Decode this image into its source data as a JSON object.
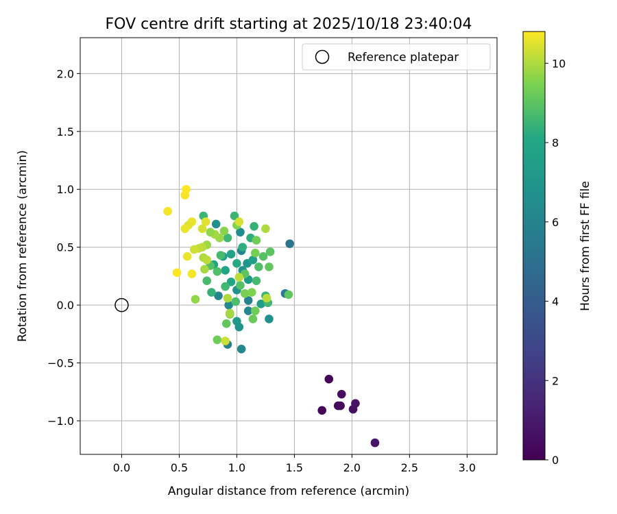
{
  "chart_data": {
    "type": "scatter",
    "title": "FOV centre drift starting at 2025/10/18 23:40:04",
    "xlabel": "Angular distance from reference (arcmin)",
    "ylabel": "Rotation from reference (arcmin)",
    "xlim": [
      -0.36,
      3.26
    ],
    "ylim": [
      -1.29,
      2.31
    ],
    "xticks": [
      0.0,
      0.5,
      1.0,
      1.5,
      2.0,
      2.5,
      3.0
    ],
    "xtick_labels": [
      "0.0",
      "0.5",
      "1.0",
      "1.5",
      "2.0",
      "2.5",
      "3.0"
    ],
    "yticks": [
      -1.0,
      -0.5,
      0.0,
      0.5,
      1.0,
      1.5,
      2.0
    ],
    "ytick_labels": [
      "−1.0",
      "−0.5",
      "0.0",
      "0.5",
      "1.0",
      "1.5",
      "2.0"
    ],
    "grid": true,
    "legend": {
      "position": "top-right",
      "label": "Reference platepar"
    },
    "reference_point": {
      "x": 0.0,
      "y": 0.0
    },
    "colorbar": {
      "label": "Hours from first FF file",
      "colormap": "viridis",
      "range": [
        0,
        10.8
      ],
      "ticks": [
        0,
        2,
        4,
        6,
        8,
        10
      ],
      "tick_labels": [
        "0",
        "2",
        "4",
        "6",
        "8",
        "10"
      ]
    },
    "points": [
      {
        "x": 1.8,
        "y": -0.64,
        "t": 0.1
      },
      {
        "x": 1.74,
        "y": -0.91,
        "t": 0.2
      },
      {
        "x": 1.88,
        "y": -0.87,
        "t": 0.3
      },
      {
        "x": 1.9,
        "y": -0.87,
        "t": 0.4
      },
      {
        "x": 1.91,
        "y": -0.77,
        "t": 0.5
      },
      {
        "x": 2.01,
        "y": -0.9,
        "t": 0.6
      },
      {
        "x": 2.03,
        "y": -0.85,
        "t": 0.7
      },
      {
        "x": 2.2,
        "y": -1.19,
        "t": 0.8
      },
      {
        "x": 1.46,
        "y": 0.53,
        "t": 5.2
      },
      {
        "x": 1.42,
        "y": 0.1,
        "t": 5.5
      },
      {
        "x": 1.04,
        "y": -0.38,
        "t": 6.2
      },
      {
        "x": 0.92,
        "y": -0.34,
        "t": 5.8
      },
      {
        "x": 1.04,
        "y": 0.47,
        "t": 6.0
      },
      {
        "x": 1.03,
        "y": 0.63,
        "t": 6.4
      },
      {
        "x": 0.82,
        "y": 0.7,
        "t": 6.6
      },
      {
        "x": 0.84,
        "y": 0.08,
        "t": 6.0
      },
      {
        "x": 0.93,
        "y": 0.0,
        "t": 6.3
      },
      {
        "x": 1.1,
        "y": 0.04,
        "t": 5.9
      },
      {
        "x": 1.1,
        "y": -0.05,
        "t": 6.2
      },
      {
        "x": 1.28,
        "y": -0.12,
        "t": 6.6
      },
      {
        "x": 1.02,
        "y": -0.19,
        "t": 6.9
      },
      {
        "x": 1.0,
        "y": -0.14,
        "t": 7.2
      },
      {
        "x": 1.0,
        "y": 0.13,
        "t": 6.7
      },
      {
        "x": 1.05,
        "y": 0.3,
        "t": 6.8
      },
      {
        "x": 1.09,
        "y": 0.36,
        "t": 7.0
      },
      {
        "x": 1.1,
        "y": 0.22,
        "t": 7.3
      },
      {
        "x": 1.21,
        "y": 0.01,
        "t": 7.4
      },
      {
        "x": 1.14,
        "y": 0.39,
        "t": 7.6
      },
      {
        "x": 0.95,
        "y": 0.44,
        "t": 7.8
      },
      {
        "x": 0.88,
        "y": 0.42,
        "t": 7.5
      },
      {
        "x": 0.8,
        "y": 0.35,
        "t": 7.9
      },
      {
        "x": 0.9,
        "y": 0.3,
        "t": 8.0
      },
      {
        "x": 0.95,
        "y": 0.2,
        "t": 8.1
      },
      {
        "x": 1.0,
        "y": 0.36,
        "t": 8.2
      },
      {
        "x": 1.05,
        "y": 0.5,
        "t": 8.3
      },
      {
        "x": 1.12,
        "y": 0.58,
        "t": 8.3
      },
      {
        "x": 1.15,
        "y": 0.68,
        "t": 8.4
      },
      {
        "x": 0.98,
        "y": 0.77,
        "t": 8.5
      },
      {
        "x": 0.92,
        "y": 0.58,
        "t": 8.6
      },
      {
        "x": 0.86,
        "y": 0.43,
        "t": 8.7
      },
      {
        "x": 0.83,
        "y": 0.29,
        "t": 8.8
      },
      {
        "x": 0.77,
        "y": 0.34,
        "t": 8.9
      },
      {
        "x": 0.71,
        "y": 0.77,
        "t": 8.5
      },
      {
        "x": 0.74,
        "y": 0.21,
        "t": 8.7
      },
      {
        "x": 0.78,
        "y": 0.11,
        "t": 8.4
      },
      {
        "x": 0.9,
        "y": 0.16,
        "t": 8.6
      },
      {
        "x": 0.99,
        "y": 0.03,
        "t": 8.8
      },
      {
        "x": 1.03,
        "y": 0.17,
        "t": 8.9
      },
      {
        "x": 1.07,
        "y": 0.27,
        "t": 9.0
      },
      {
        "x": 1.17,
        "y": 0.21,
        "t": 8.7
      },
      {
        "x": 1.19,
        "y": 0.33,
        "t": 8.8
      },
      {
        "x": 1.23,
        "y": 0.42,
        "t": 8.9
      },
      {
        "x": 1.29,
        "y": 0.46,
        "t": 9.0
      },
      {
        "x": 1.28,
        "y": 0.33,
        "t": 9.1
      },
      {
        "x": 1.25,
        "y": 0.08,
        "t": 8.5
      },
      {
        "x": 1.27,
        "y": 0.02,
        "t": 8.6
      },
      {
        "x": 1.45,
        "y": 0.09,
        "t": 9.1
      },
      {
        "x": 1.14,
        "y": -0.12,
        "t": 9.2
      },
      {
        "x": 1.16,
        "y": -0.05,
        "t": 9.3
      },
      {
        "x": 0.91,
        "y": -0.16,
        "t": 9.1
      },
      {
        "x": 0.83,
        "y": -0.3,
        "t": 9.3
      },
      {
        "x": 0.94,
        "y": -0.08,
        "t": 9.6
      },
      {
        "x": 1.07,
        "y": 0.1,
        "t": 9.4
      },
      {
        "x": 1.13,
        "y": 0.11,
        "t": 9.5
      },
      {
        "x": 1.16,
        "y": 0.45,
        "t": 9.4
      },
      {
        "x": 1.17,
        "y": 0.56,
        "t": 9.3
      },
      {
        "x": 1.0,
        "y": 0.69,
        "t": 9.5
      },
      {
        "x": 0.89,
        "y": 0.64,
        "t": 9.6
      },
      {
        "x": 0.85,
        "y": 0.58,
        "t": 9.8
      },
      {
        "x": 0.81,
        "y": 0.61,
        "t": 9.9
      },
      {
        "x": 0.77,
        "y": 0.63,
        "t": 9.7
      },
      {
        "x": 0.74,
        "y": 0.52,
        "t": 9.8
      },
      {
        "x": 0.7,
        "y": 0.5,
        "t": 10.1
      },
      {
        "x": 0.67,
        "y": 0.49,
        "t": 10.2
      },
      {
        "x": 0.63,
        "y": 0.48,
        "t": 10.3
      },
      {
        "x": 0.71,
        "y": 0.41,
        "t": 10.0
      },
      {
        "x": 0.74,
        "y": 0.39,
        "t": 10.1
      },
      {
        "x": 0.72,
        "y": 0.31,
        "t": 9.9
      },
      {
        "x": 0.64,
        "y": 0.05,
        "t": 9.7
      },
      {
        "x": 0.92,
        "y": 0.06,
        "t": 10.0
      },
      {
        "x": 1.26,
        "y": 0.06,
        "t": 10.1
      },
      {
        "x": 1.25,
        "y": 0.66,
        "t": 10.0
      },
      {
        "x": 1.02,
        "y": 0.24,
        "t": 10.1
      },
      {
        "x": 0.9,
        "y": -0.31,
        "t": 10.3
      },
      {
        "x": 0.94,
        "y": -0.07,
        "t": 9.9
      },
      {
        "x": 1.02,
        "y": 0.72,
        "t": 10.4
      },
      {
        "x": 0.73,
        "y": 0.72,
        "t": 10.5
      },
      {
        "x": 0.7,
        "y": 0.66,
        "t": 10.4
      },
      {
        "x": 0.61,
        "y": 0.72,
        "t": 10.6
      },
      {
        "x": 0.58,
        "y": 0.69,
        "t": 10.5
      },
      {
        "x": 0.55,
        "y": 0.66,
        "t": 10.6
      },
      {
        "x": 0.4,
        "y": 0.81,
        "t": 10.7
      },
      {
        "x": 0.55,
        "y": 0.95,
        "t": 10.7
      },
      {
        "x": 0.56,
        "y": 1.0,
        "t": 10.8
      },
      {
        "x": 0.57,
        "y": 0.42,
        "t": 10.6
      },
      {
        "x": 0.61,
        "y": 0.27,
        "t": 10.7
      },
      {
        "x": 0.48,
        "y": 0.28,
        "t": 10.8
      }
    ]
  }
}
